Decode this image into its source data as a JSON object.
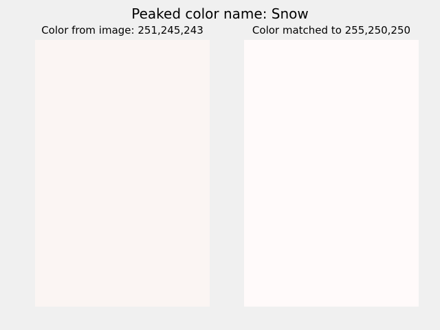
{
  "window": {
    "title": "Peaked color name: Snow"
  },
  "panels": [
    {
      "title": "Color from image: 251,245,243",
      "color": "#fbf5f3"
    },
    {
      "title": "Color matched to 255,250,250",
      "color": "#fffafa"
    }
  ]
}
